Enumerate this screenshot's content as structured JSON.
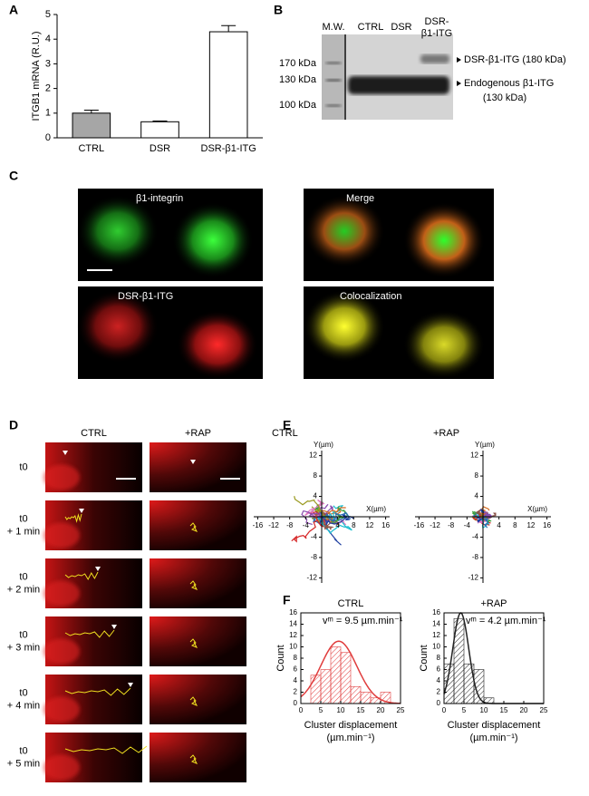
{
  "panels": {
    "labels": [
      "A",
      "B",
      "C",
      "D",
      "E",
      "F"
    ]
  },
  "blot": {
    "lanes": [
      [
        "M.W."
      ],
      [
        "CTRL"
      ],
      [
        "DSR"
      ],
      [
        "DSR-",
        "β1-ITG"
      ]
    ],
    "markers": [
      "170 kDa",
      "130 kDa",
      "100 kDa"
    ],
    "bands": [
      "DSR-β1-ITG (180 kDa)",
      "Endogenous β1-ITG",
      "(130 kDa)"
    ]
  },
  "microscopy": {
    "panels": [
      "β1-integrin",
      "Merge",
      "DSR-β1-ITG",
      "Colocalization"
    ]
  },
  "timelapse": {
    "columns": [
      "CTRL",
      "+RAP"
    ],
    "rows": [
      [
        "t0"
      ],
      [
        "t0",
        "+ 1 min"
      ],
      [
        "t0",
        "+ 2 min"
      ],
      [
        "t0",
        "+ 3 min"
      ],
      [
        "t0",
        "+ 4 min"
      ],
      [
        "t0",
        "+ 5 min"
      ]
    ]
  },
  "chart_data": [
    {
      "type": "bar",
      "ylabel": "ITGB1 mRNA (R.U.)",
      "categories": [
        "CTRL",
        "DSR",
        "DSR-β1-ITG"
      ],
      "values": [
        1.0,
        0.65,
        4.3
      ],
      "errors": [
        0.12,
        0.03,
        0.25
      ],
      "colors": [
        "#a6a6a6",
        "#ffffff",
        "#ffffff"
      ],
      "ylim": [
        0,
        5
      ],
      "yticks": [
        0,
        1,
        2,
        3,
        4,
        5
      ]
    },
    {
      "type": "trajectory",
      "title": "CTRL",
      "xlabel": "X(µm)",
      "ylabel": "Y(µm)",
      "xlim": [
        -17,
        17
      ],
      "ylim": [
        -13,
        13
      ],
      "xticks": [
        -16,
        -12,
        -8,
        -4,
        4,
        8,
        12,
        16
      ],
      "yticks": [
        -12,
        -8,
        -4,
        4,
        8,
        12
      ]
    },
    {
      "type": "trajectory",
      "title": "+RAP",
      "xlabel": "X(µm)",
      "ylabel": "Y(µm)",
      "xlim": [
        -17,
        17
      ],
      "ylim": [
        -13,
        13
      ],
      "xticks": [
        -16,
        -12,
        -8,
        -4,
        4,
        8,
        12,
        16
      ],
      "yticks": [
        -12,
        -8,
        -4,
        4,
        8,
        12
      ]
    },
    {
      "type": "histogram",
      "title": "CTRL",
      "annotation": "vᵐ = 9.5 µm.min⁻¹",
      "ylabel": "Count",
      "xlabel": [
        "Cluster displacement",
        "(µm.min⁻¹)"
      ],
      "color": "#e03c3c",
      "bins": [
        0,
        2.5,
        5,
        7.5,
        10,
        12.5,
        15,
        17.5,
        20,
        22.5
      ],
      "counts": [
        0,
        5,
        6,
        10,
        9,
        3,
        2,
        1,
        2
      ],
      "fit": {
        "mean": 9.5,
        "peak": 11,
        "sd": 4.5
      },
      "xlim": [
        0,
        25
      ],
      "ylim": [
        0,
        16
      ],
      "xticks": [
        0,
        5,
        10,
        15,
        20,
        25
      ],
      "yticks": [
        0,
        2,
        4,
        6,
        8,
        10,
        12,
        14,
        16
      ]
    },
    {
      "type": "histogram",
      "title": "+RAP",
      "annotation": "vᵐ = 4.2 µm.min⁻¹",
      "ylabel": "Count",
      "xlabel": [
        "Cluster displacement",
        "(µm.min⁻¹)"
      ],
      "color": "#222222",
      "bins": [
        0,
        2.5,
        5,
        7.5,
        10,
        12.5
      ],
      "counts": [
        7,
        15,
        7,
        6,
        1
      ],
      "fit": {
        "mean": 4.2,
        "peak": 16,
        "sd": 2
      },
      "xlim": [
        0,
        25
      ],
      "ylim": [
        0,
        16
      ],
      "xticks": [
        0,
        5,
        10,
        15,
        20,
        25
      ],
      "yticks": [
        0,
        2,
        4,
        6,
        8,
        10,
        12,
        14,
        16
      ]
    }
  ]
}
